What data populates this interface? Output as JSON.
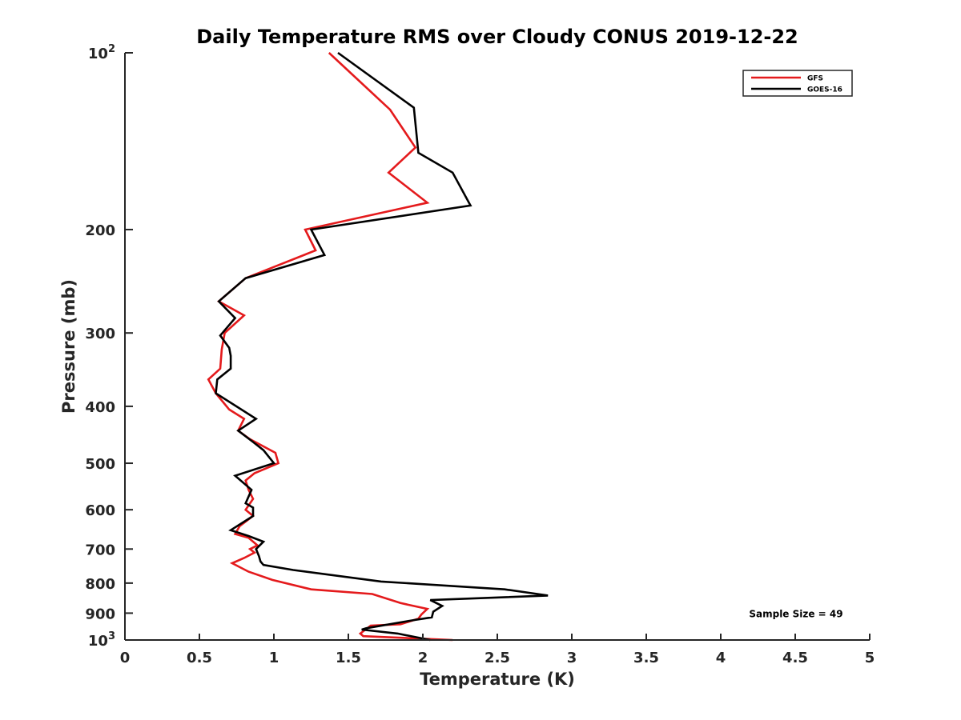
{
  "chart_data": {
    "type": "line",
    "title": "Daily Temperature RMS over Cloudy CONUS 2019-12-22",
    "xlabel": "Temperature (K)",
    "ylabel": "Pressure (mb)",
    "xlim": [
      0,
      5
    ],
    "ylim": [
      100,
      1000
    ],
    "yscale": "log",
    "y_reversed": true,
    "grid": false,
    "legend_position": "top-right",
    "x_ticks": [
      0,
      0.5,
      1,
      1.5,
      2,
      2.5,
      3,
      3.5,
      4,
      4.5,
      5
    ],
    "x_tick_labels": [
      "0",
      "0.5",
      "1",
      "1.5",
      "2",
      "2.5",
      "3",
      "3.5",
      "4",
      "4.5",
      "5"
    ],
    "y_ticks": [
      100,
      200,
      300,
      400,
      500,
      600,
      700,
      800,
      900,
      1000
    ],
    "y_tick_labels": [
      {
        "base": "10",
        "exp": "2"
      },
      {
        "base": "200",
        "exp": ""
      },
      {
        "base": "300",
        "exp": ""
      },
      {
        "base": "400",
        "exp": ""
      },
      {
        "base": "500",
        "exp": ""
      },
      {
        "base": "600",
        "exp": ""
      },
      {
        "base": "700",
        "exp": ""
      },
      {
        "base": "800",
        "exp": ""
      },
      {
        "base": "900",
        "exp": ""
      },
      {
        "base": "10",
        "exp": "3"
      }
    ],
    "annotation": "Sample Size = 49",
    "series": [
      {
        "name": "GFS",
        "color": "#e41a1c",
        "points": [
          {
            "x": 1.37,
            "y": 100
          },
          {
            "x": 1.78,
            "y": 125
          },
          {
            "x": 1.95,
            "y": 145
          },
          {
            "x": 1.77,
            "y": 160
          },
          {
            "x": 2.03,
            "y": 180
          },
          {
            "x": 1.21,
            "y": 200
          },
          {
            "x": 1.28,
            "y": 217
          },
          {
            "x": 0.81,
            "y": 242
          },
          {
            "x": 0.63,
            "y": 265
          },
          {
            "x": 0.8,
            "y": 280
          },
          {
            "x": 0.67,
            "y": 300
          },
          {
            "x": 0.65,
            "y": 320
          },
          {
            "x": 0.64,
            "y": 345
          },
          {
            "x": 0.56,
            "y": 360
          },
          {
            "x": 0.61,
            "y": 380
          },
          {
            "x": 0.7,
            "y": 405
          },
          {
            "x": 0.8,
            "y": 420
          },
          {
            "x": 0.76,
            "y": 440
          },
          {
            "x": 0.84,
            "y": 455
          },
          {
            "x": 1.01,
            "y": 480
          },
          {
            "x": 1.03,
            "y": 500
          },
          {
            "x": 0.87,
            "y": 520
          },
          {
            "x": 0.81,
            "y": 535
          },
          {
            "x": 0.83,
            "y": 555
          },
          {
            "x": 0.86,
            "y": 575
          },
          {
            "x": 0.81,
            "y": 600
          },
          {
            "x": 0.86,
            "y": 615
          },
          {
            "x": 0.77,
            "y": 640
          },
          {
            "x": 0.74,
            "y": 660
          },
          {
            "x": 0.83,
            "y": 670
          },
          {
            "x": 0.89,
            "y": 690
          },
          {
            "x": 0.84,
            "y": 700
          },
          {
            "x": 0.87,
            "y": 710
          },
          {
            "x": 0.8,
            "y": 725
          },
          {
            "x": 0.72,
            "y": 740
          },
          {
            "x": 0.83,
            "y": 765
          },
          {
            "x": 0.99,
            "y": 790
          },
          {
            "x": 1.25,
            "y": 820
          },
          {
            "x": 1.66,
            "y": 835
          },
          {
            "x": 1.85,
            "y": 865
          },
          {
            "x": 2.03,
            "y": 885
          },
          {
            "x": 1.99,
            "y": 905
          },
          {
            "x": 1.97,
            "y": 920
          },
          {
            "x": 1.85,
            "y": 940
          },
          {
            "x": 1.65,
            "y": 945
          },
          {
            "x": 1.58,
            "y": 975
          },
          {
            "x": 1.6,
            "y": 985
          },
          {
            "x": 2.2,
            "y": 1000
          }
        ]
      },
      {
        "name": "GOES-16",
        "color": "#000000",
        "points": [
          {
            "x": 1.43,
            "y": 100
          },
          {
            "x": 1.94,
            "y": 124
          },
          {
            "x": 1.97,
            "y": 148
          },
          {
            "x": 2.2,
            "y": 160
          },
          {
            "x": 2.32,
            "y": 182
          },
          {
            "x": 1.25,
            "y": 200
          },
          {
            "x": 1.34,
            "y": 221
          },
          {
            "x": 0.81,
            "y": 242
          },
          {
            "x": 0.63,
            "y": 265
          },
          {
            "x": 0.74,
            "y": 283
          },
          {
            "x": 0.64,
            "y": 303
          },
          {
            "x": 0.7,
            "y": 318
          },
          {
            "x": 0.71,
            "y": 328
          },
          {
            "x": 0.71,
            "y": 345
          },
          {
            "x": 0.62,
            "y": 360
          },
          {
            "x": 0.61,
            "y": 380
          },
          {
            "x": 0.88,
            "y": 420
          },
          {
            "x": 0.76,
            "y": 440
          },
          {
            "x": 0.86,
            "y": 460
          },
          {
            "x": 0.93,
            "y": 475
          },
          {
            "x": 1.0,
            "y": 500
          },
          {
            "x": 0.74,
            "y": 525
          },
          {
            "x": 0.85,
            "y": 555
          },
          {
            "x": 0.81,
            "y": 585
          },
          {
            "x": 0.86,
            "y": 595
          },
          {
            "x": 0.86,
            "y": 615
          },
          {
            "x": 0.71,
            "y": 650
          },
          {
            "x": 0.83,
            "y": 665
          },
          {
            "x": 0.93,
            "y": 680
          },
          {
            "x": 0.88,
            "y": 700
          },
          {
            "x": 0.9,
            "y": 720
          },
          {
            "x": 0.91,
            "y": 735
          },
          {
            "x": 0.93,
            "y": 745
          },
          {
            "x": 1.13,
            "y": 760
          },
          {
            "x": 1.72,
            "y": 795
          },
          {
            "x": 2.55,
            "y": 820
          },
          {
            "x": 2.84,
            "y": 840
          },
          {
            "x": 2.05,
            "y": 855
          },
          {
            "x": 2.13,
            "y": 875
          },
          {
            "x": 2.07,
            "y": 895
          },
          {
            "x": 2.06,
            "y": 915
          },
          {
            "x": 1.94,
            "y": 925
          },
          {
            "x": 1.62,
            "y": 955
          },
          {
            "x": 1.59,
            "y": 960
          },
          {
            "x": 1.83,
            "y": 975
          },
          {
            "x": 2.05,
            "y": 1000
          }
        ]
      }
    ]
  }
}
